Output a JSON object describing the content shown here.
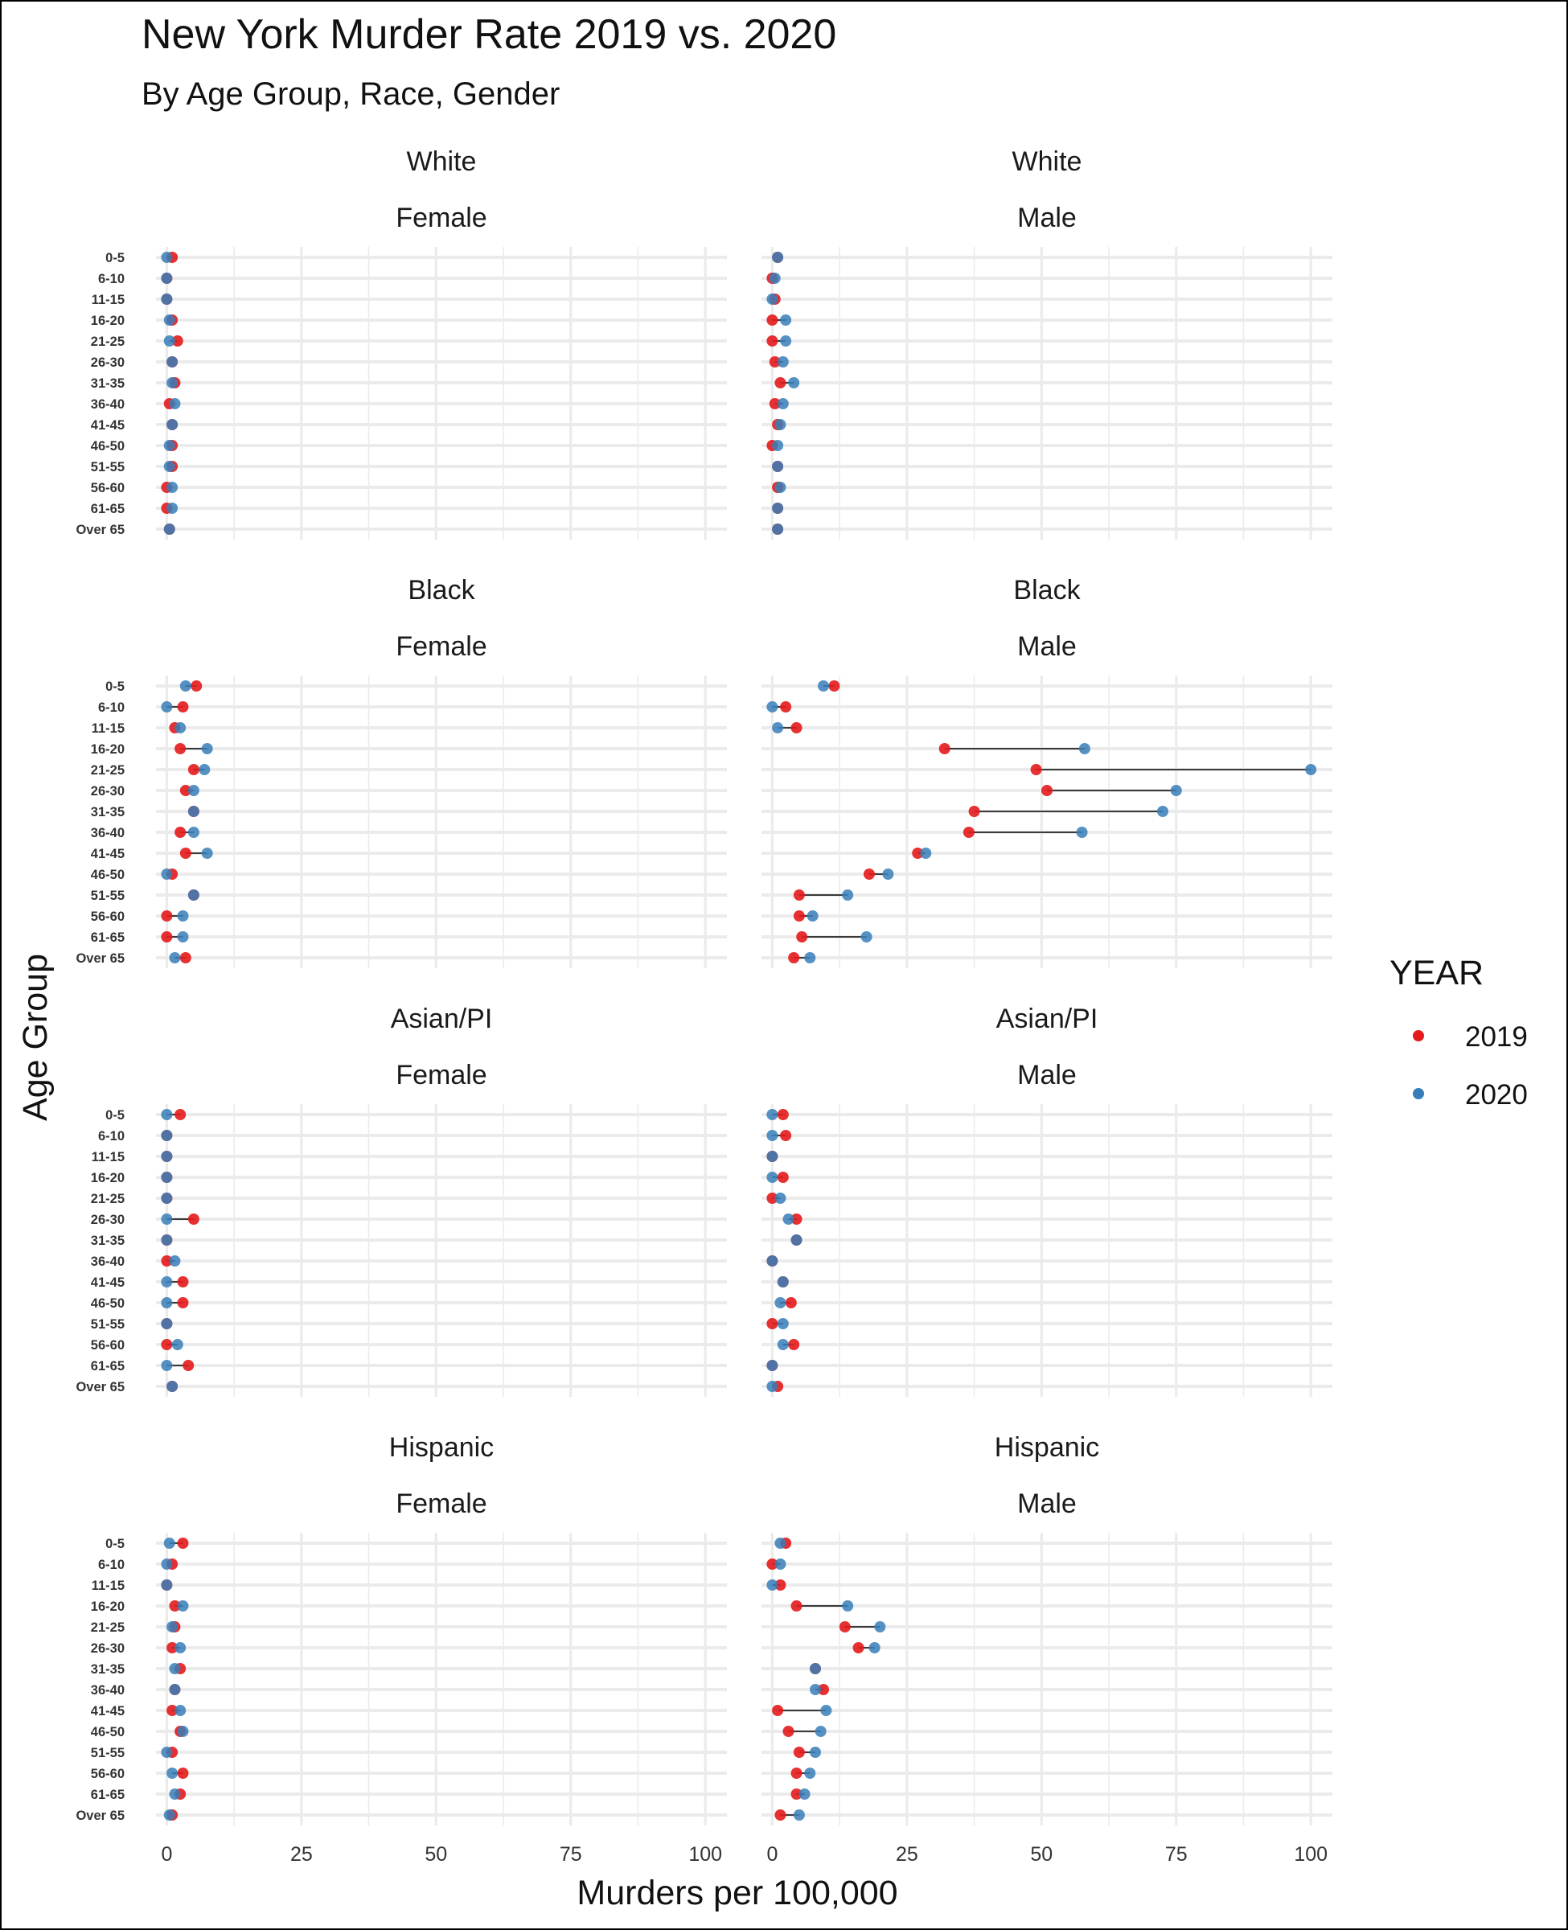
{
  "chart_data": {
    "type": "scatter",
    "subtype": "dumbbell",
    "title": "New York Murder Rate 2019 vs. 2020",
    "subtitle": "By Age Group, Race, Gender",
    "xlabel": "Murders per 100,000",
    "ylabel": "Age Group",
    "xlim": [
      -2,
      104
    ],
    "x_ticks": [
      "0",
      "25",
      "50",
      "75",
      "100"
    ],
    "grid": true,
    "legend": {
      "title": "YEAR",
      "placement": "right",
      "items": [
        {
          "label": "2019",
          "color": "#e41a1c"
        },
        {
          "label": "2020",
          "color": "#377eb8"
        }
      ]
    },
    "categories": [
      "0-5",
      "6-10",
      "11-15",
      "16-20",
      "21-25",
      "26-30",
      "31-35",
      "36-40",
      "41-45",
      "46-50",
      "51-55",
      "56-60",
      "61-65",
      "Over 65"
    ],
    "panels": [
      {
        "race": "White",
        "gender": "Female",
        "v2019": [
          1.0,
          0.0,
          0.0,
          1.0,
          2.0,
          1.0,
          1.5,
          0.5,
          1.0,
          1.0,
          1.0,
          0.0,
          0.0,
          0.5
        ],
        "v2020": [
          0.0,
          0.0,
          0.0,
          0.5,
          0.5,
          1.0,
          1.0,
          1.5,
          1.0,
          0.5,
          0.5,
          1.0,
          1.0,
          0.5
        ]
      },
      {
        "race": "White",
        "gender": "Male",
        "v2019": [
          1.0,
          0.0,
          0.5,
          0.0,
          0.0,
          0.5,
          1.5,
          0.5,
          1.0,
          0.0,
          1.0,
          1.0,
          1.0,
          1.0
        ],
        "v2020": [
          1.0,
          0.5,
          0.0,
          2.5,
          2.5,
          2.0,
          4.0,
          2.0,
          1.5,
          1.0,
          1.0,
          1.5,
          1.0,
          1.0
        ]
      },
      {
        "race": "Black",
        "gender": "Female",
        "v2019": [
          5.5,
          3.0,
          1.5,
          2.5,
          5.0,
          3.5,
          5.0,
          2.5,
          3.5,
          1.0,
          5.0,
          0.0,
          0.0,
          3.5
        ],
        "v2020": [
          3.5,
          0.0,
          2.5,
          7.5,
          7.0,
          5.0,
          5.0,
          5.0,
          7.5,
          0.0,
          5.0,
          3.0,
          3.0,
          1.5
        ]
      },
      {
        "race": "Black",
        "gender": "Male",
        "v2019": [
          11.5,
          2.5,
          4.5,
          32.0,
          49.0,
          51.0,
          37.5,
          36.5,
          27.0,
          18.0,
          5.0,
          5.0,
          5.5,
          4.0
        ],
        "v2020": [
          9.5,
          0.0,
          1.0,
          58.0,
          100.0,
          75.0,
          72.5,
          57.5,
          28.5,
          21.5,
          14.0,
          7.5,
          17.5,
          7.0
        ]
      },
      {
        "race": "Asian/PI",
        "gender": "Female",
        "v2019": [
          2.5,
          0.0,
          0.0,
          0.0,
          0.0,
          5.0,
          0.0,
          0.0,
          3.0,
          3.0,
          0.0,
          0.0,
          4.0,
          1.0
        ],
        "v2020": [
          0.0,
          0.0,
          0.0,
          0.0,
          0.0,
          0.0,
          0.0,
          1.5,
          0.0,
          0.0,
          0.0,
          2.0,
          0.0,
          1.0
        ]
      },
      {
        "race": "Asian/PI",
        "gender": "Male",
        "v2019": [
          2.0,
          2.5,
          0.0,
          2.0,
          0.0,
          4.5,
          4.5,
          0.0,
          2.0,
          3.5,
          0.0,
          4.0,
          0.0,
          1.0
        ],
        "v2020": [
          0.0,
          0.0,
          0.0,
          0.0,
          1.5,
          3.0,
          4.5,
          0.0,
          2.0,
          1.5,
          2.0,
          2.0,
          0.0,
          0.0
        ]
      },
      {
        "race": "Hispanic",
        "gender": "Female",
        "v2019": [
          3.0,
          1.0,
          0.0,
          1.5,
          1.5,
          1.0,
          2.5,
          1.5,
          1.0,
          2.5,
          1.0,
          3.0,
          2.5,
          1.0
        ],
        "v2020": [
          0.5,
          0.0,
          0.0,
          3.0,
          1.0,
          2.5,
          1.5,
          1.5,
          2.5,
          3.0,
          0.0,
          1.0,
          1.5,
          0.5
        ]
      },
      {
        "race": "Hispanic",
        "gender": "Male",
        "v2019": [
          2.5,
          0.0,
          1.5,
          4.5,
          13.5,
          16.0,
          8.0,
          9.5,
          1.0,
          3.0,
          5.0,
          4.5,
          4.5,
          1.5
        ],
        "v2020": [
          1.5,
          1.5,
          0.0,
          14.0,
          20.0,
          19.0,
          8.0,
          8.0,
          10.0,
          9.0,
          8.0,
          7.0,
          6.0,
          5.0
        ]
      }
    ]
  }
}
